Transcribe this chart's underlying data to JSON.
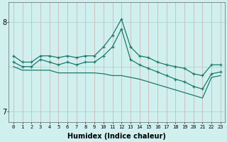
{
  "xlabel": "Humidex (Indice chaleur)",
  "bg_color": "#cff0ee",
  "line_color": "#1a7a6e",
  "x": [
    0,
    1,
    2,
    3,
    4,
    5,
    6,
    7,
    8,
    9,
    10,
    11,
    12,
    13,
    14,
    15,
    16,
    17,
    18,
    19,
    20,
    21,
    22,
    23
  ],
  "line1": [
    7.62,
    7.55,
    7.55,
    7.62,
    7.62,
    7.6,
    7.62,
    7.6,
    7.62,
    7.62,
    7.72,
    7.85,
    8.03,
    7.72,
    7.62,
    7.6,
    7.55,
    7.52,
    7.5,
    7.48,
    7.42,
    7.4,
    7.52,
    7.52
  ],
  "line2": [
    7.55,
    7.5,
    7.5,
    7.58,
    7.55,
    7.52,
    7.55,
    7.52,
    7.55,
    7.55,
    7.62,
    7.72,
    7.92,
    7.58,
    7.52,
    7.48,
    7.44,
    7.4,
    7.36,
    7.33,
    7.28,
    7.25,
    7.42,
    7.44
  ],
  "line3": [
    7.5,
    7.46,
    7.46,
    7.46,
    7.46,
    7.43,
    7.43,
    7.43,
    7.43,
    7.43,
    7.42,
    7.4,
    7.4,
    7.38,
    7.36,
    7.33,
    7.3,
    7.27,
    7.24,
    7.21,
    7.18,
    7.15,
    7.38,
    7.4
  ],
  "ylim": [
    6.88,
    8.22
  ],
  "yticks": [
    7.0,
    8.0
  ],
  "xlim": [
    -0.5,
    23.5
  ],
  "xtick_labels": [
    "0",
    "1",
    "2",
    "3",
    "4",
    "5",
    "6",
    "7",
    "8",
    "9",
    "10",
    "11",
    "12",
    "13",
    "14",
    "15",
    "16",
    "17",
    "18",
    "19",
    "20",
    "21",
    "22",
    "23"
  ]
}
